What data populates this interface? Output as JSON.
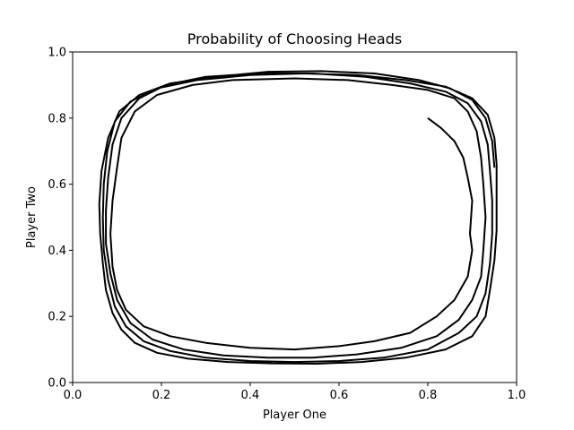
{
  "chart_data": {
    "type": "line",
    "title": "Probability of Choosing Heads",
    "xlabel": "Player One",
    "ylabel": "Player Two",
    "xlim": [
      0.0,
      1.0
    ],
    "ylim": [
      0.0,
      1.0
    ],
    "xticks": [
      "0.0",
      "0.2",
      "0.4",
      "0.6",
      "0.8",
      "1.0"
    ],
    "yticks": [
      "0.0",
      "0.2",
      "0.4",
      "0.6",
      "0.8",
      "1.0"
    ],
    "grid": false,
    "legend": "none",
    "line_color": "#000000",
    "series": [
      {
        "points": [
          [
            0.8,
            0.8
          ],
          [
            0.83,
            0.77
          ],
          [
            0.86,
            0.73
          ],
          [
            0.88,
            0.68
          ],
          [
            0.89,
            0.62
          ],
          [
            0.9,
            0.55
          ],
          [
            0.895,
            0.45
          ],
          [
            0.9,
            0.4
          ],
          [
            0.89,
            0.32
          ],
          [
            0.86,
            0.25
          ],
          [
            0.82,
            0.2
          ],
          [
            0.76,
            0.15
          ],
          [
            0.68,
            0.125
          ],
          [
            0.6,
            0.11
          ],
          [
            0.5,
            0.1
          ],
          [
            0.4,
            0.105
          ],
          [
            0.3,
            0.12
          ],
          [
            0.22,
            0.14
          ],
          [
            0.16,
            0.17
          ],
          [
            0.12,
            0.22
          ],
          [
            0.1,
            0.28
          ],
          [
            0.09,
            0.35
          ],
          [
            0.085,
            0.45
          ],
          [
            0.09,
            0.55
          ],
          [
            0.1,
            0.65
          ],
          [
            0.11,
            0.74
          ],
          [
            0.14,
            0.82
          ],
          [
            0.19,
            0.87
          ],
          [
            0.27,
            0.9
          ],
          [
            0.36,
            0.915
          ],
          [
            0.5,
            0.92
          ],
          [
            0.62,
            0.915
          ],
          [
            0.72,
            0.9
          ],
          [
            0.8,
            0.885
          ],
          [
            0.86,
            0.86
          ],
          [
            0.89,
            0.82
          ],
          [
            0.91,
            0.76
          ],
          [
            0.92,
            0.68
          ],
          [
            0.925,
            0.6
          ],
          [
            0.93,
            0.5
          ],
          [
            0.925,
            0.4
          ],
          [
            0.92,
            0.32
          ],
          [
            0.9,
            0.25
          ],
          [
            0.87,
            0.19
          ],
          [
            0.82,
            0.14
          ],
          [
            0.74,
            0.105
          ],
          [
            0.64,
            0.085
          ],
          [
            0.54,
            0.075
          ],
          [
            0.44,
            0.075
          ],
          [
            0.34,
            0.082
          ],
          [
            0.25,
            0.1
          ],
          [
            0.18,
            0.13
          ],
          [
            0.13,
            0.18
          ],
          [
            0.1,
            0.25
          ],
          [
            0.085,
            0.33
          ],
          [
            0.075,
            0.42
          ],
          [
            0.075,
            0.52
          ],
          [
            0.08,
            0.62
          ],
          [
            0.09,
            0.72
          ],
          [
            0.11,
            0.8
          ],
          [
            0.15,
            0.86
          ],
          [
            0.21,
            0.9
          ],
          [
            0.3,
            0.925
          ],
          [
            0.42,
            0.935
          ],
          [
            0.54,
            0.935
          ],
          [
            0.66,
            0.925
          ],
          [
            0.76,
            0.905
          ],
          [
            0.84,
            0.88
          ],
          [
            0.89,
            0.845
          ],
          [
            0.92,
            0.79
          ],
          [
            0.935,
            0.72
          ],
          [
            0.94,
            0.64
          ],
          [
            0.945,
            0.55
          ],
          [
            0.945,
            0.45
          ],
          [
            0.94,
            0.36
          ],
          [
            0.93,
            0.27
          ],
          [
            0.91,
            0.2
          ],
          [
            0.87,
            0.15
          ],
          [
            0.8,
            0.1
          ],
          [
            0.7,
            0.075
          ],
          [
            0.6,
            0.065
          ],
          [
            0.5,
            0.062
          ],
          [
            0.4,
            0.065
          ],
          [
            0.3,
            0.075
          ],
          [
            0.22,
            0.095
          ],
          [
            0.16,
            0.125
          ],
          [
            0.12,
            0.17
          ],
          [
            0.095,
            0.23
          ],
          [
            0.08,
            0.31
          ],
          [
            0.07,
            0.4
          ],
          [
            0.068,
            0.5
          ],
          [
            0.07,
            0.6
          ],
          [
            0.078,
            0.7
          ],
          [
            0.095,
            0.79
          ],
          [
            0.13,
            0.85
          ],
          [
            0.19,
            0.89
          ],
          [
            0.28,
            0.915
          ],
          [
            0.4,
            0.93
          ],
          [
            0.52,
            0.935
          ],
          [
            0.64,
            0.93
          ],
          [
            0.75,
            0.915
          ],
          [
            0.84,
            0.895
          ],
          [
            0.9,
            0.86
          ],
          [
            0.935,
            0.81
          ],
          [
            0.95,
            0.74
          ],
          [
            0.955,
            0.66
          ],
          [
            0.955,
            0.56
          ],
          [
            0.955,
            0.46
          ],
          [
            0.95,
            0.37
          ],
          [
            0.94,
            0.28
          ],
          [
            0.93,
            0.2
          ],
          [
            0.9,
            0.14
          ],
          [
            0.84,
            0.1
          ],
          [
            0.75,
            0.075
          ],
          [
            0.65,
            0.062
          ],
          [
            0.55,
            0.057
          ],
          [
            0.45,
            0.058
          ],
          [
            0.35,
            0.062
          ],
          [
            0.26,
            0.072
          ],
          [
            0.19,
            0.09
          ],
          [
            0.14,
            0.12
          ],
          [
            0.11,
            0.16
          ],
          [
            0.09,
            0.21
          ],
          [
            0.075,
            0.28
          ],
          [
            0.068,
            0.36
          ],
          [
            0.062,
            0.45
          ],
          [
            0.06,
            0.54
          ],
          [
            0.065,
            0.64
          ],
          [
            0.08,
            0.74
          ],
          [
            0.105,
            0.82
          ],
          [
            0.15,
            0.87
          ],
          [
            0.22,
            0.905
          ],
          [
            0.32,
            0.925
          ],
          [
            0.44,
            0.94
          ],
          [
            0.56,
            0.942
          ],
          [
            0.68,
            0.935
          ],
          [
            0.78,
            0.915
          ],
          [
            0.85,
            0.89
          ],
          [
            0.9,
            0.855
          ],
          [
            0.93,
            0.8
          ],
          [
            0.945,
            0.73
          ],
          [
            0.95,
            0.65
          ]
        ]
      }
    ]
  }
}
